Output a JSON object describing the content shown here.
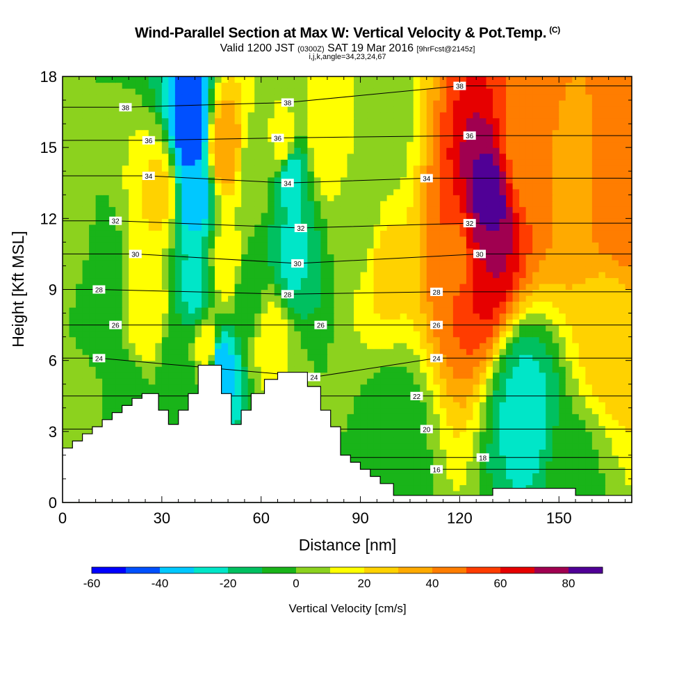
{
  "chart_data": {
    "type": "heatmap",
    "title": "Wind-Parallel Section at Max W: Vertical Velocity & Pot.Temp.",
    "title_mark": "(C)",
    "subtitle": {
      "prefix": "Valid 1200 JST",
      "utc": "(0300Z)",
      "date": "SAT 19 Mar 2016",
      "forecast": "[9hrFcst@2145z]"
    },
    "indices_label": "i,j,k,angle=34,23,24,67",
    "xlabel": "Distance [nm]",
    "ylabel": "Height [Kft MSL]",
    "xlim": [
      0,
      172
    ],
    "ylim": [
      0,
      18
    ],
    "x_ticks": [
      0,
      30,
      60,
      90,
      120,
      150
    ],
    "y_ticks": [
      0,
      3,
      6,
      9,
      12,
      15,
      18
    ],
    "colorbar": {
      "label": "Vertical Velocity [cm/s]",
      "range": [
        -60,
        90
      ],
      "step": 10,
      "tick_labels": [
        -60,
        -40,
        -20,
        0,
        20,
        40,
        60,
        80
      ],
      "colors": [
        "#0000ff",
        "#0050ff",
        "#00c8ff",
        "#00e6c8",
        "#00c060",
        "#19b419",
        "#8cd21e",
        "#ffff00",
        "#ffd200",
        "#ffaa00",
        "#ff7d00",
        "#ff3c00",
        "#e60000",
        "#a00050",
        "#500096"
      ]
    },
    "velocity_centers": [
      {
        "x": 3,
        "y": 11,
        "w": 2
      },
      {
        "x": 12,
        "y": 9,
        "w": -6
      },
      {
        "x": 26,
        "y": 8,
        "w": 20
      },
      {
        "x": 29,
        "y": 13,
        "w": 22
      },
      {
        "x": 34,
        "y": 6,
        "w": -6
      },
      {
        "x": 39,
        "y": 15.8,
        "w": -50
      },
      {
        "x": 40,
        "y": 13,
        "w": -36
      },
      {
        "x": 40,
        "y": 9,
        "w": -22
      },
      {
        "x": 44,
        "y": 6.5,
        "w": 18
      },
      {
        "x": 47,
        "y": 5.8,
        "w": -40
      },
      {
        "x": 49,
        "y": 15,
        "w": 38
      },
      {
        "x": 50,
        "y": 10,
        "w": 16
      },
      {
        "x": 56,
        "y": 9,
        "w": -8
      },
      {
        "x": 58,
        "y": 14,
        "w": 4
      },
      {
        "x": 63,
        "y": 7,
        "w": 14
      },
      {
        "x": 67,
        "y": 15,
        "w": 18
      },
      {
        "x": 68.5,
        "y": 14,
        "w": -28
      },
      {
        "x": 69,
        "y": 10.5,
        "w": -22
      },
      {
        "x": 80,
        "y": 15.5,
        "w": 20
      },
      {
        "x": 90,
        "y": 12,
        "w": 4
      },
      {
        "x": 95,
        "y": 15.5,
        "w": 2
      },
      {
        "x": 98,
        "y": 10,
        "w": 22
      },
      {
        "x": 120,
        "y": 10.5,
        "w": 48
      },
      {
        "x": 128,
        "y": 12.5,
        "w": 86
      },
      {
        "x": 126,
        "y": 11,
        "w": 70
      },
      {
        "x": 140,
        "y": 15,
        "w": 45
      },
      {
        "x": 154,
        "y": 14,
        "w": 38
      },
      {
        "x": 168,
        "y": 13,
        "w": 48
      },
      {
        "x": 165,
        "y": 7,
        "w": 25
      },
      {
        "x": 100,
        "y": 3,
        "w": -6
      },
      {
        "x": 140,
        "y": 3.8,
        "w": -24
      },
      {
        "x": 155,
        "y": 1,
        "w": -2
      },
      {
        "x": 20,
        "y": 4,
        "w": -8
      },
      {
        "x": 5,
        "y": 3,
        "w": 6
      }
    ],
    "theta_labels": [
      {
        "value": 16,
        "x": 113,
        "y": 1.4
      },
      {
        "value": 18,
        "x": 127,
        "y": 1.9
      },
      {
        "value": 20,
        "x": 110,
        "y": 3.1
      },
      {
        "value": 22,
        "x": 107,
        "y": 4.5
      },
      {
        "value": 24,
        "x": 11,
        "y": 6.1
      },
      {
        "value": 24,
        "x": 76,
        "y": 5.3
      },
      {
        "value": 24,
        "x": 113,
        "y": 6.1
      },
      {
        "value": 26,
        "x": 16,
        "y": 7.5
      },
      {
        "value": 26,
        "x": 78,
        "y": 7.5
      },
      {
        "value": 26,
        "x": 113,
        "y": 7.5
      },
      {
        "value": 28,
        "x": 11,
        "y": 9.0
      },
      {
        "value": 28,
        "x": 68,
        "y": 8.8
      },
      {
        "value": 28,
        "x": 113,
        "y": 8.9
      },
      {
        "value": 30,
        "x": 22,
        "y": 10.5
      },
      {
        "value": 30,
        "x": 71,
        "y": 10.1
      },
      {
        "value": 30,
        "x": 126,
        "y": 10.5
      },
      {
        "value": 32,
        "x": 16,
        "y": 11.9
      },
      {
        "value": 32,
        "x": 72,
        "y": 11.6
      },
      {
        "value": 32,
        "x": 123,
        "y": 11.8
      },
      {
        "value": 34,
        "x": 26,
        "y": 13.8
      },
      {
        "value": 34,
        "x": 68,
        "y": 13.5
      },
      {
        "value": 34,
        "x": 110,
        "y": 13.7
      },
      {
        "value": 36,
        "x": 26,
        "y": 15.3
      },
      {
        "value": 36,
        "x": 65,
        "y": 15.4
      },
      {
        "value": 36,
        "x": 123,
        "y": 15.5
      },
      {
        "value": 38,
        "x": 19,
        "y": 16.7
      },
      {
        "value": 38,
        "x": 68,
        "y": 16.9
      },
      {
        "value": 38,
        "x": 120,
        "y": 17.6
      }
    ],
    "terrain": [
      [
        0,
        2.3
      ],
      [
        3,
        2.3
      ],
      [
        3,
        2.6
      ],
      [
        6,
        2.6
      ],
      [
        6,
        2.9
      ],
      [
        9,
        2.9
      ],
      [
        9,
        3.2
      ],
      [
        12,
        3.2
      ],
      [
        12,
        3.5
      ],
      [
        15,
        3.5
      ],
      [
        15,
        3.8
      ],
      [
        18,
        3.8
      ],
      [
        18,
        4.1
      ],
      [
        21,
        4.1
      ],
      [
        21,
        4.4
      ],
      [
        24,
        4.4
      ],
      [
        24,
        4.6
      ],
      [
        29,
        4.6
      ],
      [
        29,
        3.9
      ],
      [
        32,
        3.9
      ],
      [
        32,
        3.3
      ],
      [
        35,
        3.3
      ],
      [
        35,
        3.9
      ],
      [
        38,
        3.9
      ],
      [
        38,
        4.6
      ],
      [
        41,
        4.6
      ],
      [
        41,
        5.8
      ],
      [
        48,
        5.8
      ],
      [
        48,
        4.6
      ],
      [
        51,
        4.6
      ],
      [
        51,
        3.3
      ],
      [
        54,
        3.3
      ],
      [
        54,
        3.9
      ],
      [
        57,
        3.9
      ],
      [
        57,
        4.6
      ],
      [
        61,
        4.6
      ],
      [
        61,
        5.2
      ],
      [
        65,
        5.2
      ],
      [
        65,
        5.5
      ],
      [
        74,
        5.5
      ],
      [
        74,
        4.9
      ],
      [
        78,
        4.9
      ],
      [
        78,
        3.9
      ],
      [
        81,
        3.9
      ],
      [
        81,
        3.2
      ],
      [
        84,
        3.2
      ],
      [
        84,
        2.0
      ],
      [
        87,
        2.0
      ],
      [
        87,
        1.7
      ],
      [
        90,
        1.7
      ],
      [
        90,
        1.4
      ],
      [
        93,
        1.4
      ],
      [
        93,
        1.1
      ],
      [
        96,
        1.1
      ],
      [
        96,
        0.8
      ],
      [
        100,
        0.8
      ],
      [
        100,
        0.3
      ],
      [
        130,
        0.3
      ],
      [
        130,
        0.6
      ],
      [
        155,
        0.6
      ],
      [
        155,
        0.3
      ],
      [
        172,
        0.3
      ],
      [
        172,
        0
      ]
    ]
  }
}
